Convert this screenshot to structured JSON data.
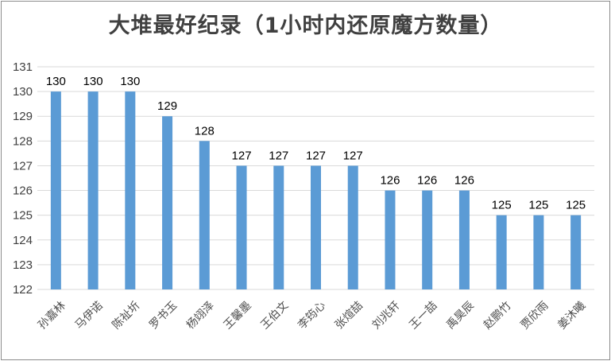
{
  "chart_data": {
    "type": "bar",
    "title": "大堆最好纪录（1小时内还原魔方数量）",
    "categories": [
      "孙嘉林",
      "马伊诺",
      "陈祉圻",
      "罗书玉",
      "杨翊泽",
      "王馨墨",
      "王伯文",
      "李筠心",
      "张煊喆",
      "刘兆轩",
      "王一喆",
      "禹昊辰",
      "赵鹏竹",
      "贾欣雨",
      "姜沐曦"
    ],
    "values": [
      130,
      130,
      130,
      129,
      128,
      127,
      127,
      127,
      127,
      126,
      126,
      126,
      125,
      125,
      125
    ],
    "ylim": [
      122,
      131
    ],
    "yticks": [
      122,
      123,
      124,
      125,
      126,
      127,
      128,
      129,
      130,
      131
    ],
    "grid": true,
    "bar_color": "#5b9bd5",
    "xlabel": "",
    "ylabel": ""
  }
}
